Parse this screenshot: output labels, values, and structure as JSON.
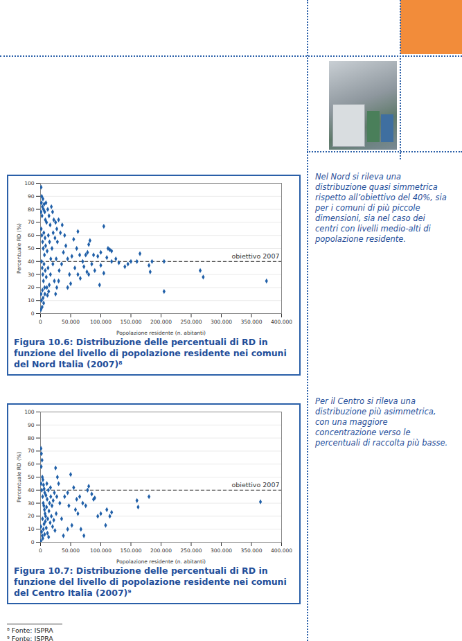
{
  "chart_data": [
    {
      "type": "scatter",
      "title": "Figura 10.6: Distribuzione delle percentuali di RD in funzione del livello di popolazione residente nei comuni del Nord Italia (2007)⁸",
      "x_label": "Popolazione residente (n. abitanti)",
      "y_label": "Percentuale RD (%)",
      "color": "#1f5fa8",
      "marker": "diamond",
      "grid": true,
      "xlim": [
        0,
        400000
      ],
      "xticks": [
        0,
        {
          "value": 50000,
          "label": "50.000"
        },
        {
          "value": 100000,
          "label": "100.000"
        },
        {
          "value": 150000,
          "label": "150.000"
        },
        {
          "value": 200000,
          "label": "200.000"
        },
        {
          "value": 250000,
          "label": "250.000"
        },
        {
          "value": 300000,
          "label": "300.000"
        },
        {
          "value": 350000,
          "label": "350.000"
        },
        {
          "value": 400000,
          "label": "400.000"
        }
      ],
      "ylim": [
        0,
        100
      ],
      "yticks": [
        0,
        10,
        20,
        30,
        40,
        50,
        60,
        70,
        80,
        90,
        100
      ],
      "annotations": [
        {
          "text": "obiettivo 2007",
          "y": 40
        }
      ],
      "x": [
        1000,
        2000,
        1500,
        3000,
        800,
        4000,
        2500,
        5000,
        6000,
        7000,
        8000,
        9000,
        10000,
        12000,
        14000,
        16000,
        18000,
        20000,
        22000,
        25000,
        1200,
        2200,
        3500,
        4500,
        5500,
        6500,
        7500,
        8500,
        11000,
        13000,
        15000,
        17000,
        19000,
        21000,
        24000,
        27000,
        28000,
        30000,
        33000,
        36000,
        1800,
        2800,
        3800,
        4800,
        5800,
        6800,
        7800,
        9500,
        12500,
        14500,
        16500,
        20500,
        23000,
        26000,
        31000,
        900,
        1600,
        2600,
        3200,
        4200,
        600,
        5200,
        7200,
        10500,
        11500,
        13500,
        105000,
        62000,
        55000,
        82000,
        80000,
        112000,
        115000,
        118000,
        88000,
        100000,
        165000,
        160000,
        130000,
        140000,
        118000,
        110000,
        95000,
        75000,
        78000,
        52000,
        60000,
        65000,
        70000,
        72000,
        85000,
        90000,
        100000,
        98000,
        105000,
        180000,
        182000,
        185000,
        205000,
        205000,
        265000,
        270000,
        375000,
        150000,
        145000,
        125000,
        57000,
        62000,
        66000,
        77000,
        80000,
        50000,
        45000,
        48000,
        42000,
        40000,
        38000,
        35000,
        30000,
        27000,
        25000,
        45000
      ],
      "values": [
        97,
        90,
        85,
        82,
        78,
        88,
        75,
        80,
        84,
        78,
        72,
        85,
        70,
        80,
        75,
        68,
        82,
        78,
        72,
        70,
        65,
        60,
        55,
        50,
        62,
        45,
        58,
        52,
        48,
        60,
        55,
        42,
        50,
        62,
        58,
        65,
        55,
        72,
        62,
        68,
        40,
        35,
        30,
        25,
        38,
        20,
        33,
        28,
        35,
        22,
        30,
        38,
        25,
        42,
        33,
        15,
        10,
        5,
        18,
        12,
        3,
        8,
        15,
        20,
        14,
        17,
        67,
        63,
        57,
        56,
        53,
        50,
        49,
        48,
        45,
        47,
        46,
        40,
        39,
        36,
        40,
        43,
        44,
        45,
        47,
        44,
        50,
        45,
        40,
        36,
        38,
        33,
        37,
        22,
        31,
        37,
        32,
        40,
        40,
        17,
        33,
        28,
        25,
        40,
        38,
        42,
        35,
        30,
        27,
        32,
        30,
        23,
        20,
        30,
        52,
        60,
        47,
        38,
        25,
        20,
        15,
        42
      ]
    },
    {
      "type": "scatter",
      "title": "Figura 10.7: Distribuzione delle percentuali di RD in funzione del livello di popolazione residente nei comuni del Centro Italia (2007)⁹",
      "x_label": "Popolazione residente (n. abitanti)",
      "y_label": "Percentuale RD (%)",
      "color": "#1f5fa8",
      "marker": "diamond",
      "grid": true,
      "xlim": [
        0,
        400000
      ],
      "xticks": [
        0,
        {
          "value": 50000,
          "label": "50.000"
        },
        {
          "value": 100000,
          "label": "100.000"
        },
        {
          "value": 150000,
          "label": "150.000"
        },
        {
          "value": 200000,
          "label": "200.000"
        },
        {
          "value": 250000,
          "label": "250.000"
        },
        {
          "value": 300000,
          "label": "300.000"
        },
        {
          "value": 350000,
          "label": "350.000"
        },
        {
          "value": 400000,
          "label": "400.000"
        }
      ],
      "ylim": [
        0,
        100
      ],
      "yticks": [
        0,
        10,
        20,
        30,
        40,
        50,
        60,
        70,
        80,
        90,
        100
      ],
      "annotations": [
        {
          "text": "obiettivo 2007",
          "y": 40
        }
      ],
      "x": [
        800,
        1500,
        2500,
        1200,
        3000,
        4000,
        5000,
        6000,
        7000,
        9000,
        11000,
        13000,
        15000,
        17000,
        19000,
        21000,
        23000,
        1000,
        2000,
        3500,
        4500,
        5500,
        6500,
        7500,
        8500,
        10000,
        12000,
        14000,
        16000,
        18000,
        20000,
        22000,
        24000,
        26000,
        600,
        1800,
        2800,
        3800,
        4800,
        5800,
        6800,
        8000,
        9500,
        11500,
        13500,
        700,
        3300,
        10500,
        16500,
        27000,
        80000,
        78000,
        85000,
        88000,
        90000,
        50000,
        55000,
        60000,
        65000,
        70000,
        75000,
        45000,
        40000,
        110000,
        115000,
        108000,
        118000,
        160000,
        162000,
        180000,
        365000,
        100000,
        95000,
        62000,
        67000,
        72000,
        45000,
        52000,
        58000,
        47000,
        30000,
        32000,
        35000,
        38000,
        28000,
        25000
      ],
      "values": [
        72,
        68,
        63,
        58,
        50,
        48,
        44,
        41,
        38,
        36,
        33,
        40,
        30,
        35,
        28,
        32,
        38,
        45,
        40,
        35,
        30,
        28,
        25,
        22,
        20,
        27,
        18,
        24,
        15,
        20,
        12,
        17,
        9,
        22,
        12,
        8,
        5,
        3,
        10,
        14,
        6,
        16,
        11,
        7,
        4,
        1,
        18,
        45,
        42,
        35,
        43,
        40,
        37,
        33,
        34,
        52,
        42,
        33,
        35,
        30,
        28,
        38,
        35,
        25,
        20,
        13,
        23,
        32,
        27,
        35,
        31,
        22,
        20,
        22,
        10,
        5,
        10,
        13,
        25,
        28,
        45,
        30,
        18,
        5,
        50,
        57
      ]
    }
  ],
  "notes": [
    "Nel Nord si rileva una distribuzione quasi simmetrica rispetto all’obiettivo del 40%, sia per i comuni di più piccole dimensioni, sia nel caso dei centri con livelli medio-alti di popolazione residente.",
    "Per il Centro si rileva una distribuzione più asimmetrica, con una maggiore concentrazione verso le percentuali di raccolta più basse."
  ],
  "footnotes": [
    "⁸ Fonte: ISPRA",
    "⁹ Fonte: ISPRA"
  ]
}
